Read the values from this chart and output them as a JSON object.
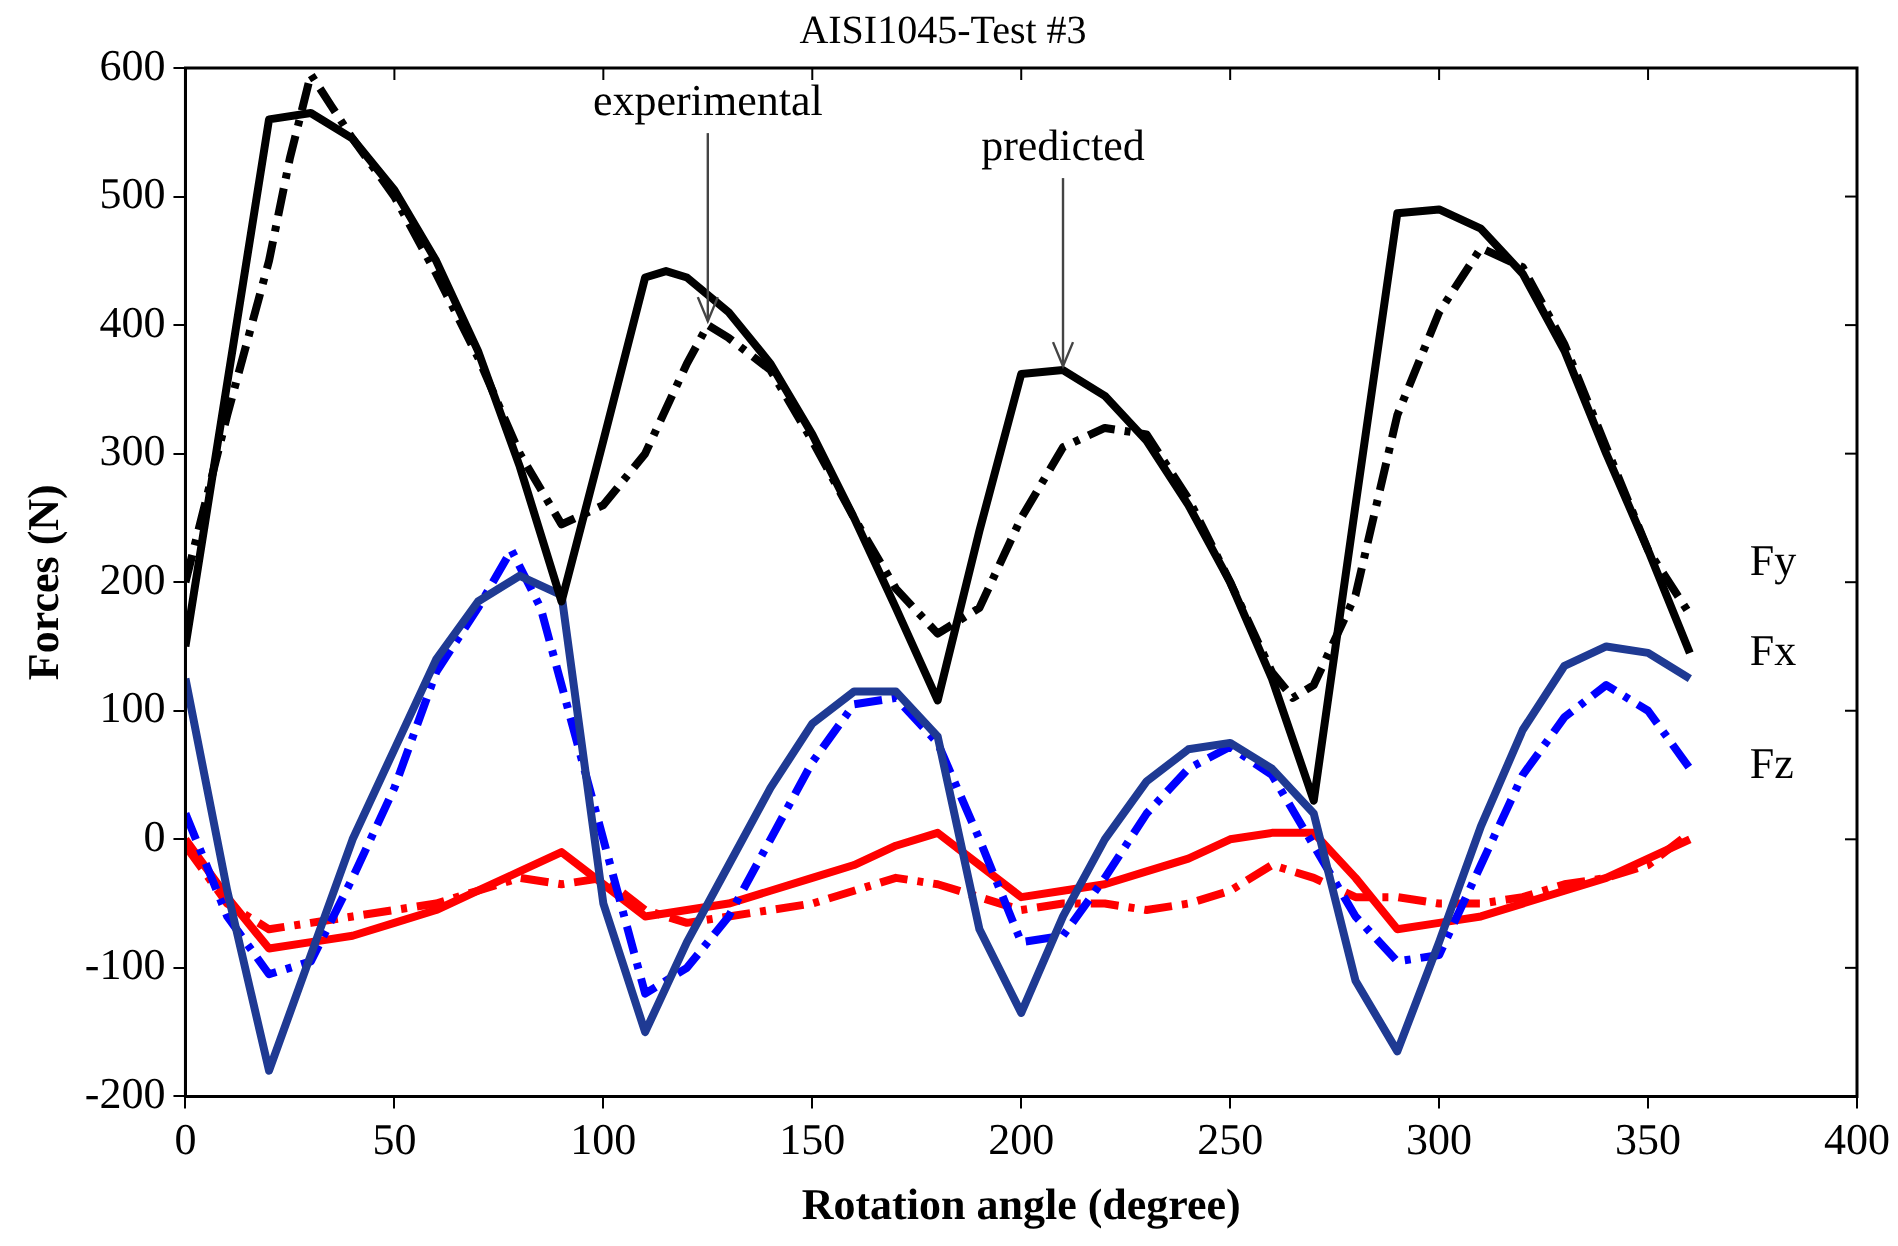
{
  "chart_data": {
    "type": "line",
    "title": "AISI1045-Test #3",
    "xlabel": "Rotation angle (degree)",
    "ylabel": "Forces (N)",
    "xlim": [
      0,
      400
    ],
    "xticks": [
      0,
      50,
      100,
      150,
      200,
      250,
      300,
      350,
      400
    ],
    "ylim": [
      -200,
      600
    ],
    "yticks": [
      -200,
      -100,
      0,
      100,
      200,
      300,
      400,
      500,
      600
    ],
    "grid": false,
    "legend": false,
    "marker": "none",
    "annotations": [
      {
        "text": "experimental",
        "x": 125,
        "y": 400
      },
      {
        "text": "predicted",
        "x": 210,
        "y": 365
      },
      "Fy",
      "Fx",
      "Fz"
    ],
    "series": [
      {
        "color": "#000000",
        "line_style": "solid",
        "x": [
          0,
          20,
          30,
          40,
          50,
          60,
          70,
          80,
          90,
          100,
          110,
          115,
          120,
          130,
          140,
          150,
          160,
          170,
          180,
          190,
          200,
          210,
          220,
          230,
          240,
          250,
          260,
          270,
          280,
          290,
          300,
          310,
          320,
          330,
          340,
          350,
          360
        ],
        "values": [
          150,
          560,
          565,
          545,
          505,
          450,
          380,
          290,
          185,
          310,
          437,
          442,
          437,
          410,
          370,
          315,
          250,
          180,
          108,
          240,
          362,
          365,
          345,
          310,
          260,
          200,
          125,
          30,
          260,
          487,
          490,
          475,
          440,
          380,
          300,
          225,
          145
        ]
      },
      {
        "color": "#000000",
        "line_style": "dashed",
        "x": [
          0,
          10,
          20,
          25,
          30,
          35,
          40,
          50,
          60,
          70,
          80,
          90,
          100,
          110,
          120,
          125,
          130,
          140,
          150,
          160,
          170,
          180,
          190,
          200,
          210,
          220,
          230,
          240,
          250,
          260,
          265,
          270,
          280,
          290,
          300,
          310,
          320,
          330,
          340,
          350,
          360
        ],
        "values": [
          200,
          330,
          450,
          530,
          595,
          570,
          545,
          500,
          440,
          375,
          300,
          245,
          260,
          300,
          370,
          400,
          390,
          365,
          310,
          250,
          195,
          160,
          180,
          250,
          305,
          320,
          315,
          265,
          200,
          130,
          110,
          120,
          190,
          330,
          410,
          460,
          445,
          385,
          305,
          225,
          175
        ]
      },
      {
        "color": "#1f3a93",
        "line_style": "solid",
        "x": [
          0,
          10,
          20,
          30,
          40,
          50,
          60,
          70,
          80,
          90,
          100,
          110,
          120,
          130,
          140,
          150,
          160,
          170,
          180,
          190,
          200,
          210,
          220,
          230,
          240,
          250,
          260,
          270,
          280,
          290,
          300,
          310,
          320,
          330,
          340,
          350,
          360
        ],
        "values": [
          125,
          -40,
          -180,
          -90,
          0,
          70,
          140,
          185,
          205,
          190,
          -50,
          -150,
          -80,
          -20,
          40,
          90,
          115,
          115,
          80,
          -70,
          -135,
          -60,
          0,
          45,
          70,
          75,
          55,
          20,
          -110,
          -165,
          -80,
          10,
          85,
          135,
          150,
          145,
          125
        ]
      },
      {
        "color": "#0000ff",
        "line_style": "dashed",
        "x": [
          0,
          10,
          20,
          30,
          40,
          50,
          60,
          70,
          78,
          85,
          90,
          100,
          110,
          120,
          130,
          140,
          150,
          160,
          170,
          180,
          190,
          200,
          210,
          220,
          230,
          240,
          250,
          260,
          270,
          280,
          290,
          300,
          310,
          320,
          330,
          340,
          350,
          360
        ],
        "values": [
          20,
          -60,
          -105,
          -95,
          -30,
          40,
          130,
          180,
          225,
          180,
          120,
          0,
          -120,
          -100,
          -60,
          0,
          60,
          105,
          110,
          75,
          0,
          -80,
          -75,
          -30,
          20,
          55,
          72,
          50,
          -5,
          -60,
          -95,
          -90,
          -20,
          50,
          95,
          120,
          100,
          55
        ]
      },
      {
        "color": "#ff0000",
        "line_style": "solid",
        "x": [
          0,
          10,
          20,
          30,
          40,
          50,
          60,
          70,
          80,
          90,
          100,
          110,
          120,
          130,
          140,
          150,
          160,
          170,
          180,
          190,
          200,
          210,
          220,
          230,
          240,
          250,
          260,
          270,
          280,
          290,
          300,
          310,
          320,
          330,
          340,
          350,
          360
        ],
        "values": [
          0,
          -45,
          -85,
          -80,
          -75,
          -65,
          -55,
          -40,
          -25,
          -10,
          -35,
          -60,
          -55,
          -50,
          -40,
          -30,
          -20,
          -5,
          5,
          -20,
          -45,
          -40,
          -35,
          -25,
          -15,
          0,
          5,
          5,
          -30,
          -70,
          -65,
          -60,
          -50,
          -40,
          -30,
          -15,
          0
        ]
      },
      {
        "color": "#ff0000",
        "line_style": "dashed",
        "x": [
          0,
          10,
          20,
          30,
          40,
          50,
          60,
          70,
          80,
          90,
          100,
          110,
          120,
          130,
          140,
          150,
          160,
          170,
          180,
          190,
          200,
          210,
          220,
          230,
          240,
          250,
          260,
          270,
          280,
          290,
          300,
          310,
          320,
          330,
          340,
          350,
          360
        ],
        "values": [
          -5,
          -50,
          -70,
          -65,
          -60,
          -55,
          -50,
          -40,
          -30,
          -35,
          -30,
          -55,
          -65,
          -60,
          -55,
          -50,
          -40,
          -30,
          -35,
          -45,
          -55,
          -50,
          -50,
          -55,
          -50,
          -40,
          -20,
          -30,
          -45,
          -45,
          -50,
          -50,
          -45,
          -35,
          -30,
          -20,
          5
        ]
      }
    ]
  }
}
